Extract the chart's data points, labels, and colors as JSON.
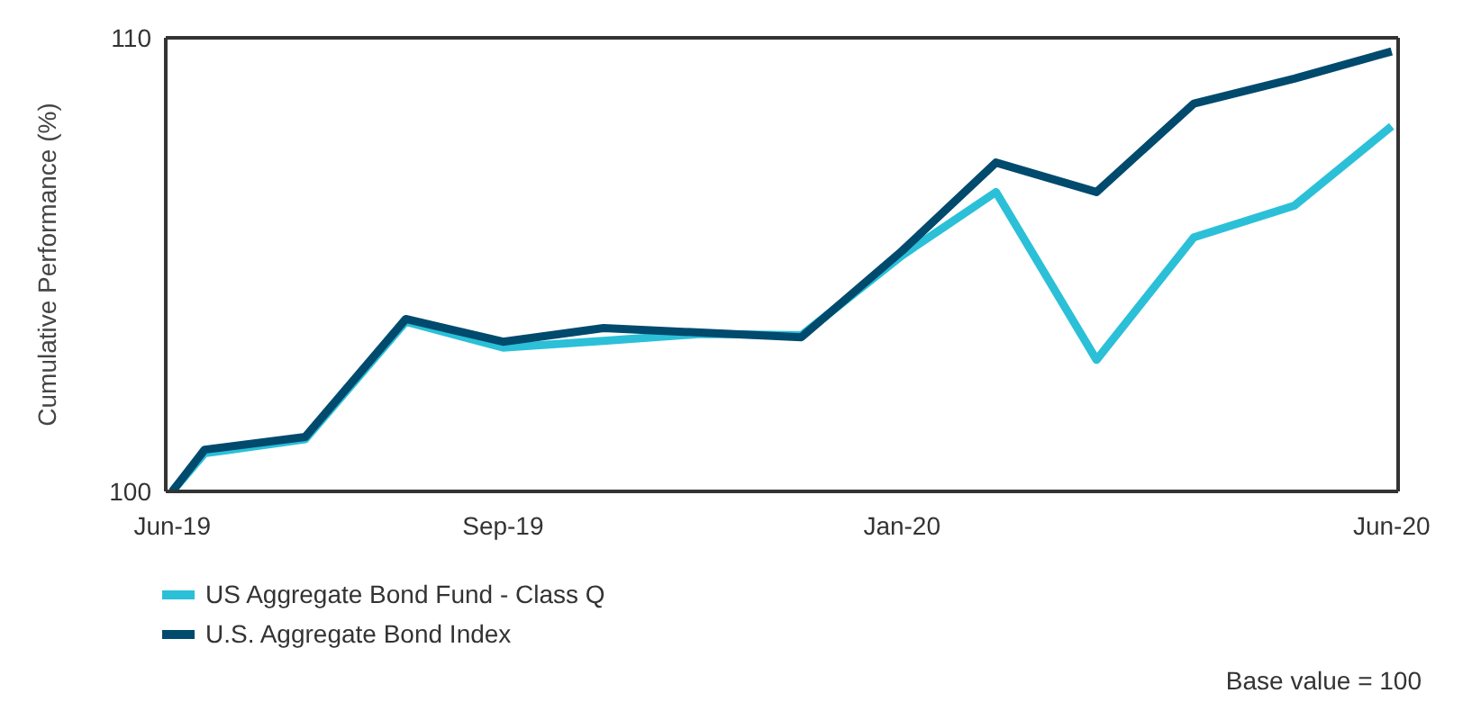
{
  "chart_data": {
    "type": "line",
    "ylabel": "Cumulative Performance (%)",
    "x": [
      "2019-06-20",
      "2019-06-30",
      "2019-07-31",
      "2019-08-31",
      "2019-09-30",
      "2019-10-31",
      "2019-11-30",
      "2019-12-31",
      "2020-01-31",
      "2020-02-29",
      "2020-03-31",
      "2020-04-30",
      "2020-05-31",
      "2020-06-30"
    ],
    "xlim": [
      "2019-06-18",
      "2020-07-02"
    ],
    "xticks": [
      {
        "value": "2019-06-20",
        "label": "Jun-19"
      },
      {
        "value": "2019-09-30",
        "label": "Sep-19"
      },
      {
        "value": "2020-01-31",
        "label": "Jan-20"
      },
      {
        "value": "2020-06-30",
        "label": "Jun-20"
      }
    ],
    "ylim": [
      100,
      110
    ],
    "yticks": [
      100,
      110
    ],
    "series": [
      {
        "name": "US Aggregate Bond Fund - Class Q",
        "color": "#2bc0d8",
        "values": [
          100,
          100.84,
          101.15,
          103.74,
          103.17,
          103.32,
          103.47,
          103.44,
          105.2,
          106.6,
          102.9,
          105.6,
          106.3,
          108.05
        ]
      },
      {
        "name": "U.S. Aggregate Bond Index",
        "color": "#004a6e",
        "values": [
          100,
          100.92,
          101.2,
          103.8,
          103.3,
          103.6,
          103.5,
          103.4,
          105.3,
          107.25,
          106.6,
          108.55,
          109.1,
          109.7
        ]
      }
    ],
    "grid": false,
    "legend": "bottom left",
    "marker": "none",
    "line_style": "solid",
    "annotations": [
      "Base value = 100"
    ]
  }
}
